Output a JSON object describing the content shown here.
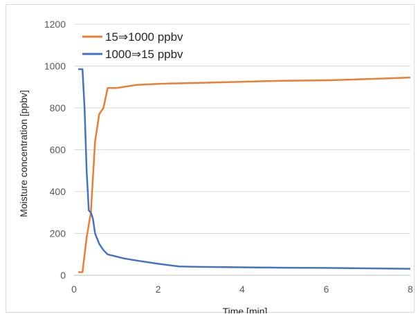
{
  "chart_data": {
    "type": "line",
    "xlabel": "Time [min]",
    "ylabel": "Moisture concentration [ppbv]",
    "xlim": [
      0,
      8
    ],
    "ylim": [
      0,
      1200
    ],
    "x_ticks": [
      0,
      2,
      4,
      6,
      8
    ],
    "y_ticks": [
      0,
      200,
      400,
      600,
      800,
      1000,
      1200
    ],
    "grid": "horizontal",
    "legend_position": "top-left",
    "series": [
      {
        "name": "15⇒1000 ppbv",
        "color": "#ed7d31",
        "x": [
          0.1,
          0.2,
          0.3,
          0.4,
          0.5,
          0.6,
          0.7,
          0.8,
          1.0,
          1.5,
          2.0,
          3.0,
          4.0,
          5.0,
          6.0,
          7.0,
          8.0
        ],
        "y": [
          15,
          15,
          180,
          300,
          640,
          770,
          800,
          895,
          895,
          910,
          915,
          920,
          925,
          930,
          932,
          938,
          945
        ]
      },
      {
        "name": "1000⇒15 ppbv",
        "color": "#4472c4",
        "x": [
          0.1,
          0.2,
          0.25,
          0.3,
          0.35,
          0.4,
          0.45,
          0.5,
          0.6,
          0.7,
          0.8,
          1.0,
          1.2,
          1.5,
          2.0,
          2.5,
          3.0,
          4.0,
          5.0,
          6.0,
          7.0,
          8.0
        ],
        "y": [
          985,
          985,
          800,
          500,
          310,
          300,
          270,
          200,
          150,
          120,
          100,
          90,
          80,
          70,
          55,
          42,
          40,
          38,
          36,
          35,
          33,
          31
        ]
      }
    ]
  }
}
